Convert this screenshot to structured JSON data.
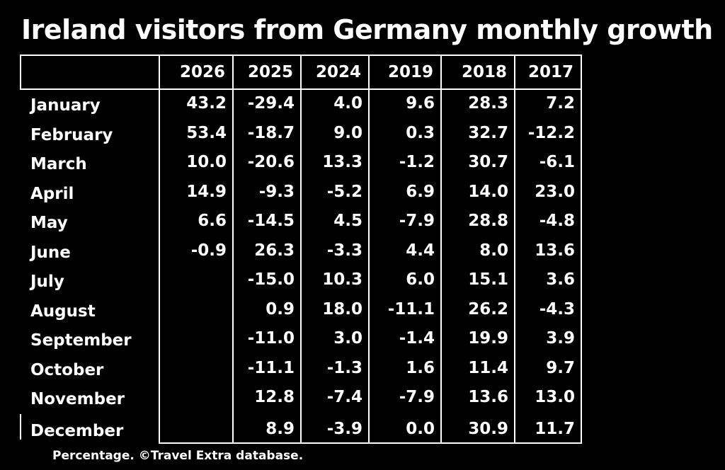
{
  "title": "Ireland visitors from Germany monthly growth",
  "footnote": "Percentage. ©Travel Extra database.",
  "chart_data": {
    "type": "table",
    "columns": [
      "2026",
      "2025",
      "2024",
      "2019",
      "2018",
      "2017"
    ],
    "rows": [
      {
        "month": "January",
        "values": [
          "43.2",
          "-29.4",
          "4.0",
          "9.6",
          "28.3",
          "7.2"
        ]
      },
      {
        "month": "February",
        "values": [
          "53.4",
          "-18.7",
          "9.0",
          "0.3",
          "32.7",
          "-12.2"
        ]
      },
      {
        "month": "March",
        "values": [
          "10.0",
          "-20.6",
          "13.3",
          "-1.2",
          "30.7",
          "-6.1"
        ]
      },
      {
        "month": "April",
        "values": [
          "14.9",
          "-9.3",
          "-5.2",
          "6.9",
          "14.0",
          "23.0"
        ]
      },
      {
        "month": "May",
        "values": [
          "6.6",
          "-14.5",
          "4.5",
          "-7.9",
          "28.8",
          "-4.8"
        ]
      },
      {
        "month": "June",
        "values": [
          "-0.9",
          "26.3",
          "-3.3",
          "4.4",
          "8.0",
          "13.6"
        ]
      },
      {
        "month": "July",
        "values": [
          "",
          "-15.0",
          "10.3",
          "6.0",
          "15.1",
          "3.6"
        ]
      },
      {
        "month": "August",
        "values": [
          "",
          "0.9",
          "18.0",
          "-11.1",
          "26.2",
          "-4.3"
        ]
      },
      {
        "month": "September",
        "values": [
          "",
          "-11.0",
          "3.0",
          "-1.4",
          "19.9",
          "3.9"
        ]
      },
      {
        "month": "October",
        "values": [
          "",
          "-11.1",
          "-1.3",
          "1.6",
          "11.4",
          "9.7"
        ]
      },
      {
        "month": "November",
        "values": [
          "",
          "12.8",
          "-7.4",
          "-7.9",
          "13.6",
          "13.0"
        ]
      },
      {
        "month": "December",
        "values": [
          "",
          "8.9",
          "-3.9",
          "0.0",
          "30.9",
          "11.7"
        ]
      }
    ]
  }
}
